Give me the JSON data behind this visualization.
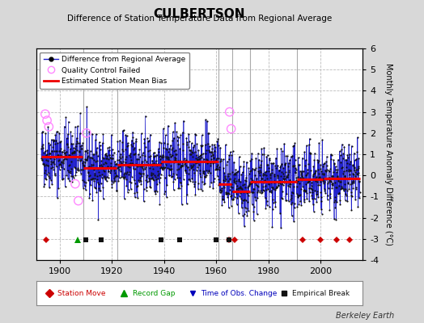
{
  "title": "CULBERTSON",
  "subtitle": "Difference of Station Temperature Data from Regional Average",
  "ylabel": "Monthly Temperature Anomaly Difference (°C)",
  "xlim": [
    1891,
    2016
  ],
  "ylim": [
    -4,
    6
  ],
  "yticks": [
    -4,
    -3,
    -2,
    -1,
    0,
    1,
    2,
    3,
    4,
    5,
    6
  ],
  "xticks": [
    1900,
    1920,
    1940,
    1960,
    1980,
    2000
  ],
  "background_color": "#d8d8d8",
  "plot_bg_color": "#ffffff",
  "grid_color": "#bbbbbb",
  "seed": 42,
  "segment_biases": [
    {
      "start": 1893,
      "end": 1908,
      "bias": 0.9
    },
    {
      "start": 1909,
      "end": 1921,
      "bias": 0.35
    },
    {
      "start": 1922,
      "end": 1938,
      "bias": 0.5
    },
    {
      "start": 1939,
      "end": 1960,
      "bias": 0.65
    },
    {
      "start": 1961,
      "end": 1965,
      "bias": -0.4
    },
    {
      "start": 1966,
      "end": 1972,
      "bias": -0.75
    },
    {
      "start": 1973,
      "end": 1990,
      "bias": -0.3
    },
    {
      "start": 1991,
      "end": 2000,
      "bias": -0.2
    },
    {
      "start": 2001,
      "end": 2014,
      "bias": -0.15
    }
  ],
  "vertical_lines_x": [
    1909,
    1922,
    1961,
    1966,
    1973,
    1991
  ],
  "line_color": "#2222cc",
  "dot_color": "#111111",
  "bias_line_color": "#ee0000",
  "qc_color": "#ff88ff",
  "station_move_color": "#cc0000",
  "record_gap_color": "#009900",
  "obs_change_color": "#0000bb",
  "empirical_break_color": "#111111",
  "marker_y": -3.05,
  "station_moves": [
    1895,
    1965,
    1967,
    1993,
    2000,
    2006,
    2011
  ],
  "record_gaps": [
    1907
  ],
  "obs_changes": [
    1965
  ],
  "empirical_breaks": [
    1910,
    1916,
    1939,
    1946,
    1960,
    1965
  ],
  "qc_failed_x": [
    1894.5,
    1895.2,
    1895.9,
    1906.0,
    1907.2,
    1910.3,
    1965.1,
    1965.7
  ],
  "qc_failed_y": [
    2.9,
    2.6,
    2.3,
    -0.4,
    -1.2,
    2.0,
    3.0,
    2.2
  ]
}
